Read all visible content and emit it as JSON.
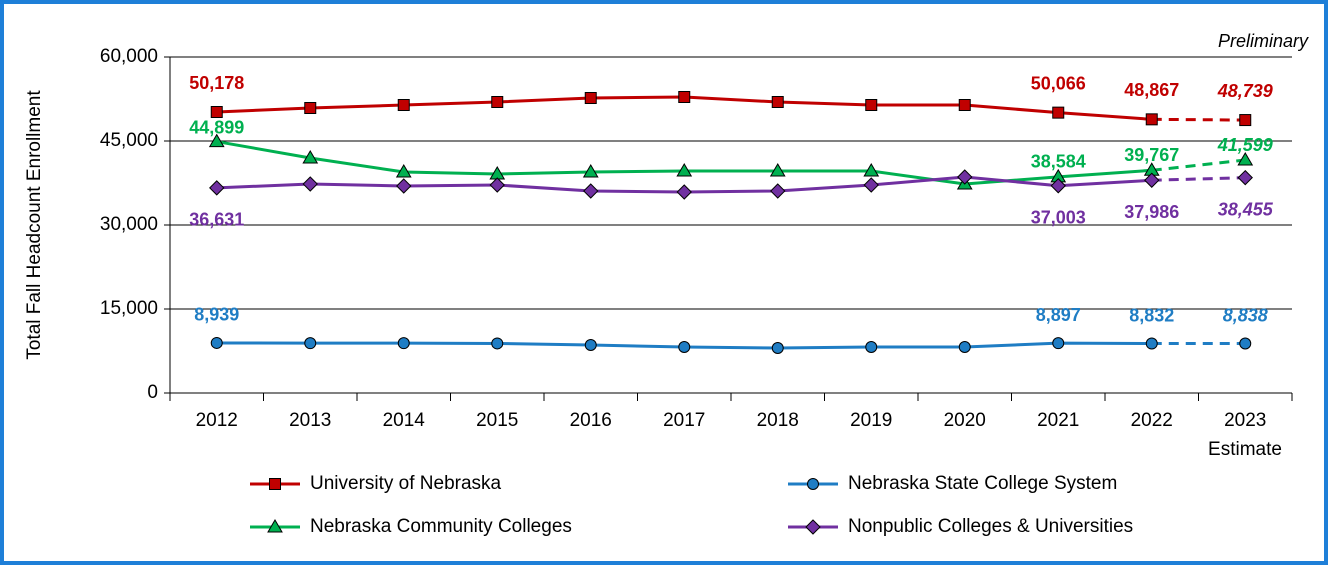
{
  "chart_data": {
    "type": "line",
    "y_axis_label": "Total Fall Headcount Enrollment",
    "annotations": [
      "Preliminary",
      "Estimate"
    ],
    "categories": [
      "2012",
      "2013",
      "2014",
      "2015",
      "2016",
      "2017",
      "2018",
      "2019",
      "2020",
      "2021",
      "2022",
      "2023"
    ],
    "ylim": [
      0,
      60000
    ],
    "yticks": [
      0,
      {
        "value": 15000,
        "label": "15,000"
      },
      {
        "value": 30000,
        "label": "30,000"
      },
      {
        "value": 45000,
        "label": "45,000"
      },
      {
        "value": 60000,
        "label": "60,000"
      }
    ],
    "grid": true,
    "series": [
      {
        "name": "University of Nebraska",
        "color": "#c00000",
        "marker": "square",
        "values": [
          50178,
          50893,
          51428,
          51964,
          52678,
          52857,
          51964,
          51428,
          51428,
          50066,
          48867,
          48739
        ],
        "value_labels": [
          "50,178",
          null,
          null,
          null,
          null,
          null,
          null,
          null,
          null,
          "50,066",
          "48,867",
          "48,739"
        ]
      },
      {
        "name": "Nebraska State College System",
        "color": "#1f7dc4",
        "marker": "circle",
        "values": [
          8939,
          8900,
          8900,
          8850,
          8571,
          8214,
          8036,
          8214,
          8214,
          8897,
          8832,
          8838
        ],
        "value_labels": [
          "8,939",
          null,
          null,
          null,
          null,
          null,
          null,
          null,
          null,
          "8,897",
          "8,832",
          "8,838"
        ]
      },
      {
        "name": "Nebraska Community Colleges",
        "color": "#00b050",
        "marker": "triangle",
        "values": [
          44899,
          41964,
          39464,
          39107,
          39464,
          39643,
          39643,
          39643,
          37321,
          38584,
          39767,
          41599
        ],
        "value_labels": [
          "44,899",
          null,
          null,
          null,
          null,
          null,
          null,
          null,
          null,
          "38,584",
          "39,767",
          "41,599"
        ]
      },
      {
        "name": "Nonpublic Colleges & Universities",
        "color": "#7030a0",
        "marker": "diamond",
        "values": [
          36631,
          37321,
          36964,
          37143,
          36071,
          35893,
          36071,
          37143,
          38571,
          37003,
          37986,
          38455
        ],
        "value_labels": [
          "36,631",
          null,
          null,
          null,
          null,
          null,
          null,
          null,
          null,
          "37,003",
          "37,986",
          "38,455"
        ]
      }
    ]
  }
}
